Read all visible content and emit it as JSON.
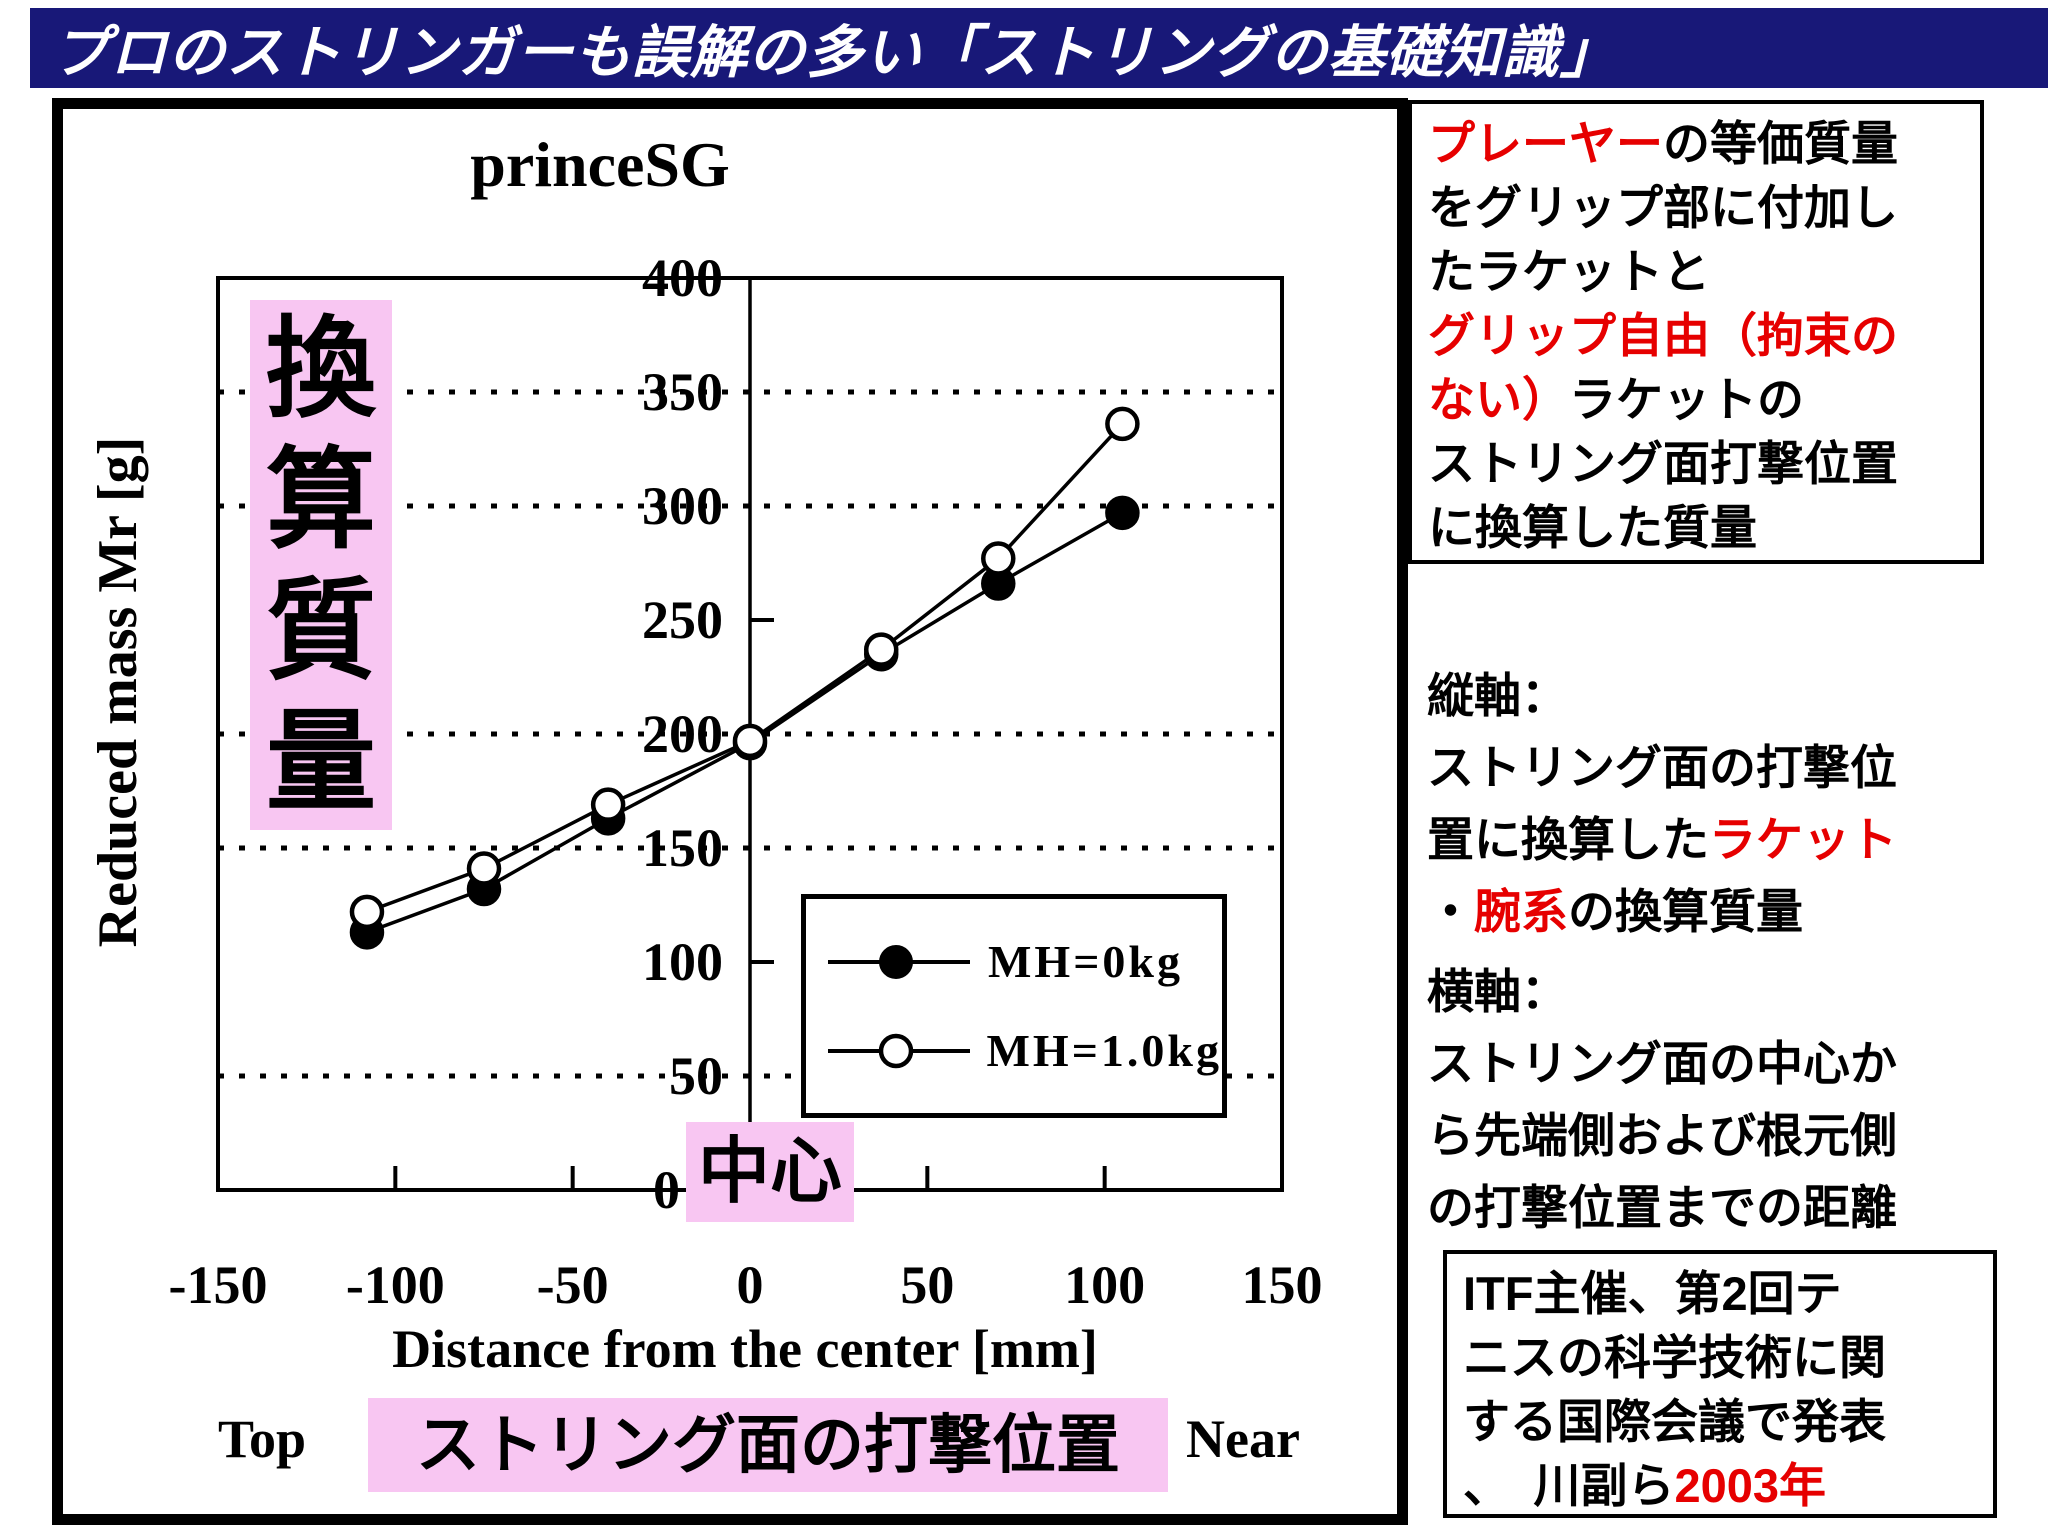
{
  "slide": {
    "title": "プロのストリンガーも誤解の多い「ストリングの基礎知識」"
  },
  "colors": {
    "title_bar_bg": "#181878",
    "title_text": "#ffffff",
    "highlight_pink": "#f8c6f2",
    "accent_red": "#e60000",
    "line_black": "#000000"
  },
  "chart_data": {
    "type": "line",
    "title": "princeSG",
    "xlabel": "Distance from the center [mm]",
    "ylabel": "Reduced mass Mr [g]",
    "xlim": [
      -150,
      150
    ],
    "ylim": [
      0,
      400
    ],
    "x_ticks": [
      "-150",
      "-100",
      "-50",
      "0",
      "50",
      "100",
      "150"
    ],
    "y_ticks": [
      400,
      350,
      300,
      250,
      200,
      150,
      100,
      50,
      0
    ],
    "dotted_gridlines_y": [
      350,
      300,
      200,
      150,
      50
    ],
    "center_axis_ticks_y": [
      250,
      100
    ],
    "bottom_axis_ticks_x": [
      -100,
      -50,
      50,
      100
    ],
    "grid": "dotted horizontal lines, solid vertical center axis at x=0",
    "legend_position": "lower right",
    "series": [
      {
        "name": "MH=0kg",
        "marker": "filled-circle",
        "x": [
          -108,
          -75,
          -40,
          0,
          37,
          70,
          105
        ],
        "y": [
          113,
          132,
          163,
          196,
          235,
          266,
          297
        ]
      },
      {
        "name": "MH=1.0kg",
        "marker": "open-circle",
        "x": [
          -108,
          -75,
          -40,
          0,
          37,
          70,
          105
        ],
        "y": [
          122,
          141,
          169,
          197,
          237,
          277,
          336
        ]
      }
    ]
  },
  "chart_annotations": {
    "y_axis_highlight": "換算質量",
    "center_label": "中心",
    "bottom_left": "Top",
    "bottom_center_highlight": "ストリング面の打撃位置",
    "bottom_right": "Near"
  },
  "right_column": {
    "top_box": {
      "lines": [
        [
          {
            "text": "プレーヤー",
            "red": true
          },
          {
            "text": "の等価質量",
            "red": false
          }
        ],
        [
          {
            "text": "をグリップ部に付加し",
            "red": false
          }
        ],
        [
          {
            "text": "たラケットと",
            "red": false
          }
        ],
        [
          {
            "text": "グリップ自由（拘束の",
            "red": true
          }
        ],
        [
          {
            "text": "ない）",
            "red": true
          },
          {
            "text": "ラケットの",
            "red": false
          }
        ],
        [
          {
            "text": "ストリング面打撃位置",
            "red": false
          }
        ],
        [
          {
            "text": "に換算した質量",
            "red": false
          }
        ]
      ]
    },
    "vertical_axis_note": {
      "lines": [
        [
          {
            "text": "縦軸：",
            "red": false
          }
        ],
        [
          {
            "text": "ストリング面の打撃位",
            "red": false
          }
        ],
        [
          {
            "text": "置に換算した",
            "red": false
          },
          {
            "text": "ラケット",
            "red": true
          }
        ],
        [
          {
            "text": "・",
            "red": false
          },
          {
            "text": "腕系",
            "red": true
          },
          {
            "text": "の換算質量",
            "red": false
          }
        ]
      ]
    },
    "horizontal_axis_note": {
      "lines": [
        [
          {
            "text": "横軸：",
            "red": false
          }
        ],
        [
          {
            "text": "ストリング面の中心か",
            "red": false
          }
        ],
        [
          {
            "text": "ら先端側および根元側",
            "red": false
          }
        ],
        [
          {
            "text": "の打撃位置までの距離",
            "red": false
          }
        ]
      ]
    },
    "bottom_box": {
      "lines": [
        [
          {
            "text": "ITF主催、第2回テ",
            "red": false
          }
        ],
        [
          {
            "text": "ニスの科学技術に関",
            "red": false
          }
        ],
        [
          {
            "text": "する国際会議で発表",
            "red": false
          }
        ],
        [
          {
            "text": "、　川副ら",
            "red": false
          },
          {
            "text": "2003年",
            "red": true
          }
        ]
      ]
    }
  }
}
